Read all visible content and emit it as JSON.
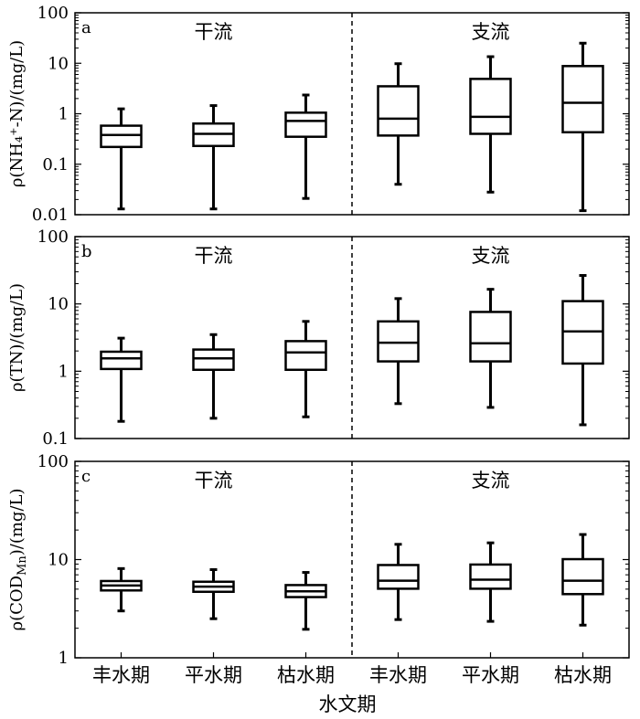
{
  "chart_data": {
    "type": "box",
    "xlabel": "水文期",
    "categories": [
      "丰水期",
      "平水期",
      "枯水期",
      "丰水期",
      "平水期",
      "枯水期"
    ],
    "groups": [
      {
        "label": "干流",
        "categories": [
          0,
          1,
          2
        ]
      },
      {
        "label": "支流",
        "categories": [
          3,
          4,
          5
        ]
      }
    ],
    "panels": [
      {
        "letter": "a",
        "ylabel": "ρ(NH₄⁺-N)/(mg/L)",
        "yscale": "log",
        "ylim": [
          0.01,
          100
        ],
        "yticks": [
          "0.01",
          "0.1",
          "1",
          "10",
          "100"
        ],
        "boxes": [
          {
            "min": 0.013,
            "q1": 0.22,
            "median": 0.38,
            "q3": 0.58,
            "max": 1.25
          },
          {
            "min": 0.013,
            "q1": 0.23,
            "median": 0.4,
            "q3": 0.64,
            "max": 1.45
          },
          {
            "min": 0.021,
            "q1": 0.35,
            "median": 0.72,
            "q3": 1.05,
            "max": 2.35
          },
          {
            "min": 0.04,
            "q1": 0.37,
            "median": 0.8,
            "q3": 3.5,
            "max": 9.8
          },
          {
            "min": 0.028,
            "q1": 0.4,
            "median": 0.87,
            "q3": 4.9,
            "max": 13.5
          },
          {
            "min": 0.012,
            "q1": 0.43,
            "median": 1.65,
            "q3": 8.8,
            "max": 25.0
          }
        ]
      },
      {
        "letter": "b",
        "ylabel": "ρ(TN)/(mg/L)",
        "yscale": "log",
        "ylim": [
          0.1,
          100
        ],
        "yticks": [
          "0.1",
          "1",
          "10",
          "100"
        ],
        "boxes": [
          {
            "min": 0.18,
            "q1": 1.08,
            "median": 1.55,
            "q3": 1.95,
            "max": 3.1
          },
          {
            "min": 0.2,
            "q1": 1.05,
            "median": 1.55,
            "q3": 2.1,
            "max": 3.5
          },
          {
            "min": 0.21,
            "q1": 1.05,
            "median": 1.9,
            "q3": 2.8,
            "max": 5.5
          },
          {
            "min": 0.33,
            "q1": 1.4,
            "median": 2.65,
            "q3": 5.5,
            "max": 12.0
          },
          {
            "min": 0.29,
            "q1": 1.4,
            "median": 2.6,
            "q3": 7.6,
            "max": 16.5
          },
          {
            "min": 0.16,
            "q1": 1.3,
            "median": 3.9,
            "q3": 11.0,
            "max": 26.5
          }
        ]
      },
      {
        "letter": "c",
        "ylabel": "ρ(COD",
        "ylabel_sub": "Mn",
        "ylabel_tail": ")/(mg/L)",
        "yscale": "log",
        "ylim": [
          1,
          100
        ],
        "yticks": [
          "1",
          "10",
          "100"
        ],
        "boxes": [
          {
            "min": 3.0,
            "q1": 4.85,
            "median": 5.45,
            "q3": 6.05,
            "max": 8.1
          },
          {
            "min": 2.5,
            "q1": 4.7,
            "median": 5.3,
            "q3": 5.95,
            "max": 7.9
          },
          {
            "min": 1.95,
            "q1": 4.15,
            "median": 4.75,
            "q3": 5.5,
            "max": 7.4
          },
          {
            "min": 2.45,
            "q1": 5.05,
            "median": 6.1,
            "q3": 8.8,
            "max": 14.3
          },
          {
            "min": 2.35,
            "q1": 5.05,
            "median": 6.25,
            "q3": 8.9,
            "max": 14.8
          },
          {
            "min": 2.15,
            "q1": 4.45,
            "median": 6.1,
            "q3": 10.1,
            "max": 18.0
          }
        ]
      }
    ]
  }
}
